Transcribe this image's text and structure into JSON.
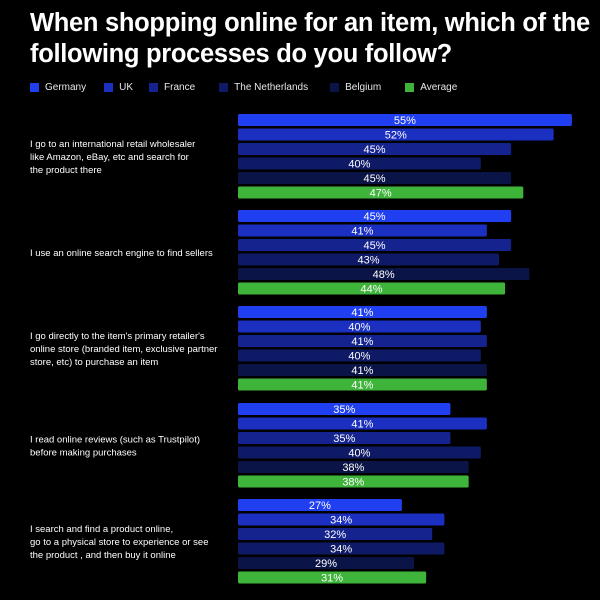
{
  "chart_data": {
    "type": "bar",
    "orientation": "horizontal",
    "title": "When shopping online for an item, which of the following processes do you follow?",
    "categories": [
      "I go to an international retail wholesaler like Amazon, eBay, etc and search for the product there",
      "I use an online search engine to find sellers",
      "I go directly to the item's primary retailer's online store (branded item, exclusive partner store, etc) to purchase an item",
      "I read online reviews (such as Trustpilot) before making purchases",
      "I search and find a product online, go to a physical store to experience or see the product , and then buy it online"
    ],
    "category_lines": [
      [
        "I go to an international retail wholesaler",
        "like Amazon, eBay, etc and search for",
        "the product there"
      ],
      [
        "I use an online search engine to find sellers"
      ],
      [
        "I go directly to the item's primary retailer's",
        "online store (branded item, exclusive partner",
        "store, etc) to purchase an item"
      ],
      [
        "I read online reviews (such as Trustpilot)",
        "before making purchases"
      ],
      [
        "I search and find a product online,",
        "go to a physical store to experience or see",
        "the product , and then buy it online"
      ]
    ],
    "series": [
      {
        "name": "Germany",
        "color": "#1f3ff0",
        "values": [
          55,
          45,
          41,
          35,
          27
        ]
      },
      {
        "name": "UK",
        "color": "#1b2fc0",
        "values": [
          52,
          41,
          40,
          41,
          34
        ]
      },
      {
        "name": "France",
        "color": "#15238e",
        "values": [
          45,
          45,
          41,
          35,
          32
        ]
      },
      {
        "name": "The Netherlands",
        "color": "#0f1a66",
        "values": [
          40,
          43,
          40,
          40,
          34
        ]
      },
      {
        "name": "Belgium",
        "color": "#0b1446",
        "values": [
          45,
          48,
          41,
          38,
          29
        ]
      },
      {
        "name": "Average",
        "color": "#3fb43a",
        "values": [
          47,
          44,
          41,
          38,
          31
        ]
      }
    ],
    "value_suffix": "%",
    "legend_position": "top-left",
    "grid": false
  }
}
